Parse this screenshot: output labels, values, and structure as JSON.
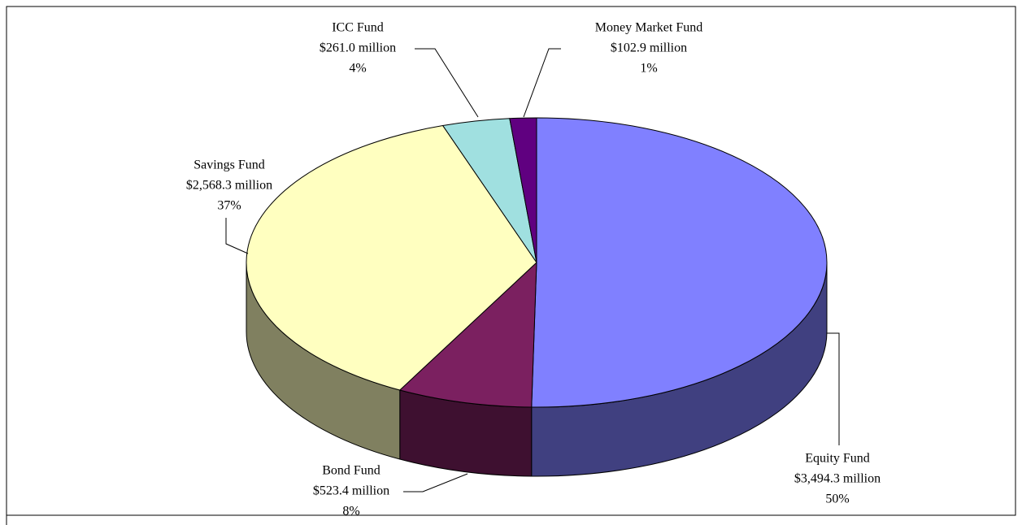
{
  "chart_data": {
    "type": "pie3d",
    "categories": [
      "Equity Fund",
      "Bond Fund",
      "Savings Fund",
      "ICC Fund",
      "Money Market Fund"
    ],
    "values": [
      3494.3,
      523.4,
      2568.3,
      261.0,
      102.9
    ],
    "value_labels": [
      "$3,494.3 million",
      "$523.4 million",
      "$2,568.3 million",
      "$261.0 million",
      "$102.9 million"
    ],
    "percent_labels": [
      "50%",
      "8%",
      "37%",
      "4%",
      "1%"
    ],
    "colors": [
      "#8080ff",
      "#7b2060",
      "#ffffc0",
      "#a0e0e0",
      "#600080"
    ]
  }
}
